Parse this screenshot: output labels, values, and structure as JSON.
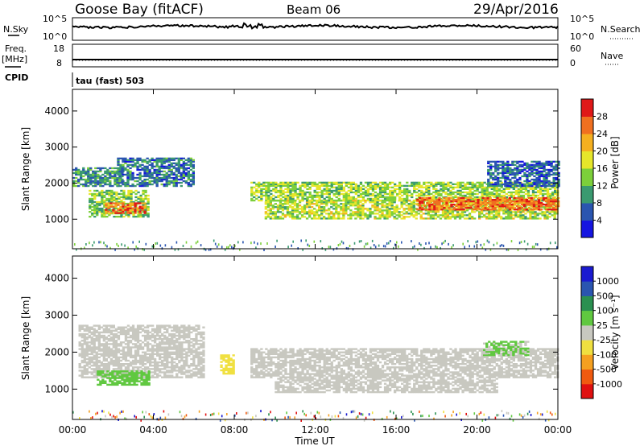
{
  "header": {
    "station": "Goose Bay (fitACF)",
    "beam": "Beam 06",
    "date": "29/Apr/2016"
  },
  "summary": {
    "nsky_label": "N.Sky",
    "nsearch_label": "N.Search",
    "noise_ticks": [
      "10^5",
      "10^0"
    ],
    "freq_label": "Freq.",
    "freq_unit": "[MHz]",
    "freq_ticks": [
      "18",
      "8"
    ],
    "nave_label": "Nave",
    "nave_ticks": [
      "60",
      "0"
    ],
    "cpid_label": "CPID",
    "cpid_value": "tau (fast) 503"
  },
  "colors": {
    "power_scale": [
      "#1515e0",
      "#2a55b0",
      "#3a9a70",
      "#7ccf3a",
      "#e6e62a",
      "#f5b020",
      "#f07020",
      "#e01818"
    ],
    "velocity_scale": [
      "#e01010",
      "#f05a10",
      "#f5a020",
      "#f0e040",
      "#c8c8c0",
      "#60c840",
      "#2a9050",
      "#2a55b0",
      "#1a1ad0"
    ]
  },
  "chart_data": [
    {
      "type": "heatmap",
      "name": "power",
      "ylabel": "Slant Range [km]",
      "yticks": [
        "1000",
        "2000",
        "3000",
        "4000"
      ],
      "ylim": [
        180,
        4600
      ],
      "xlim": [
        0,
        24
      ],
      "colorbar": {
        "label": "Power [dB]",
        "ticks": [
          "4",
          "8",
          "12",
          "16",
          "20",
          "24",
          "28"
        ],
        "range": [
          0,
          32
        ]
      },
      "bands": [
        {
          "t0": 0.8,
          "t1": 3.8,
          "r0": 1050,
          "r1": 1800,
          "value": 14
        },
        {
          "t0": 1.6,
          "t1": 3.6,
          "r0": 1150,
          "r1": 1450,
          "value": 26
        },
        {
          "t0": 2.2,
          "t1": 6.0,
          "r0": 1900,
          "r1": 2700,
          "value": 8
        },
        {
          "t0": 0.0,
          "t1": 2.5,
          "r0": 1900,
          "r1": 2400,
          "value": 9
        },
        {
          "t0": 8.8,
          "t1": 24.0,
          "r0": 1500,
          "r1": 2000,
          "value": 15
        },
        {
          "t0": 9.5,
          "t1": 24.0,
          "r0": 1000,
          "r1": 1500,
          "value": 16
        },
        {
          "t0": 17.0,
          "t1": 24.0,
          "r0": 1250,
          "r1": 1600,
          "value": 26
        },
        {
          "t0": 20.5,
          "t1": 24.0,
          "r0": 1900,
          "r1": 2600,
          "value": 7
        }
      ]
    },
    {
      "type": "heatmap",
      "name": "velocity",
      "ylabel": "Slant Range [km]",
      "yticks": [
        "1000",
        "2000",
        "3000",
        "4000"
      ],
      "ylim": [
        180,
        4600
      ],
      "xlim": [
        0,
        24
      ],
      "colorbar": {
        "label": "Velocity [m s⁻¹]",
        "ticks": [
          "-1000",
          "-500",
          "-100",
          "-25",
          "25",
          "100",
          "500",
          "1000"
        ],
        "range": [
          -1200,
          1200
        ]
      },
      "bands": [
        {
          "t0": 0.3,
          "t1": 6.5,
          "r0": 1300,
          "r1": 2700,
          "value": 0
        },
        {
          "t0": 1.2,
          "t1": 3.8,
          "r0": 1100,
          "r1": 1500,
          "value": 200
        },
        {
          "t0": 8.8,
          "t1": 24.0,
          "r0": 1300,
          "r1": 2100,
          "value": 0
        },
        {
          "t0": 10.0,
          "t1": 21.0,
          "r0": 900,
          "r1": 1300,
          "value": 0
        },
        {
          "t0": 20.3,
          "t1": 22.5,
          "r0": 1900,
          "r1": 2300,
          "value": 150
        },
        {
          "t0": 7.3,
          "t1": 8.0,
          "r0": 1400,
          "r1": 1900,
          "value": -200
        }
      ]
    }
  ],
  "xaxis": {
    "ticks": [
      "00:00",
      "04:00",
      "08:00",
      "12:00",
      "16:00",
      "20:00",
      "00:00"
    ],
    "label": "Time UT"
  }
}
